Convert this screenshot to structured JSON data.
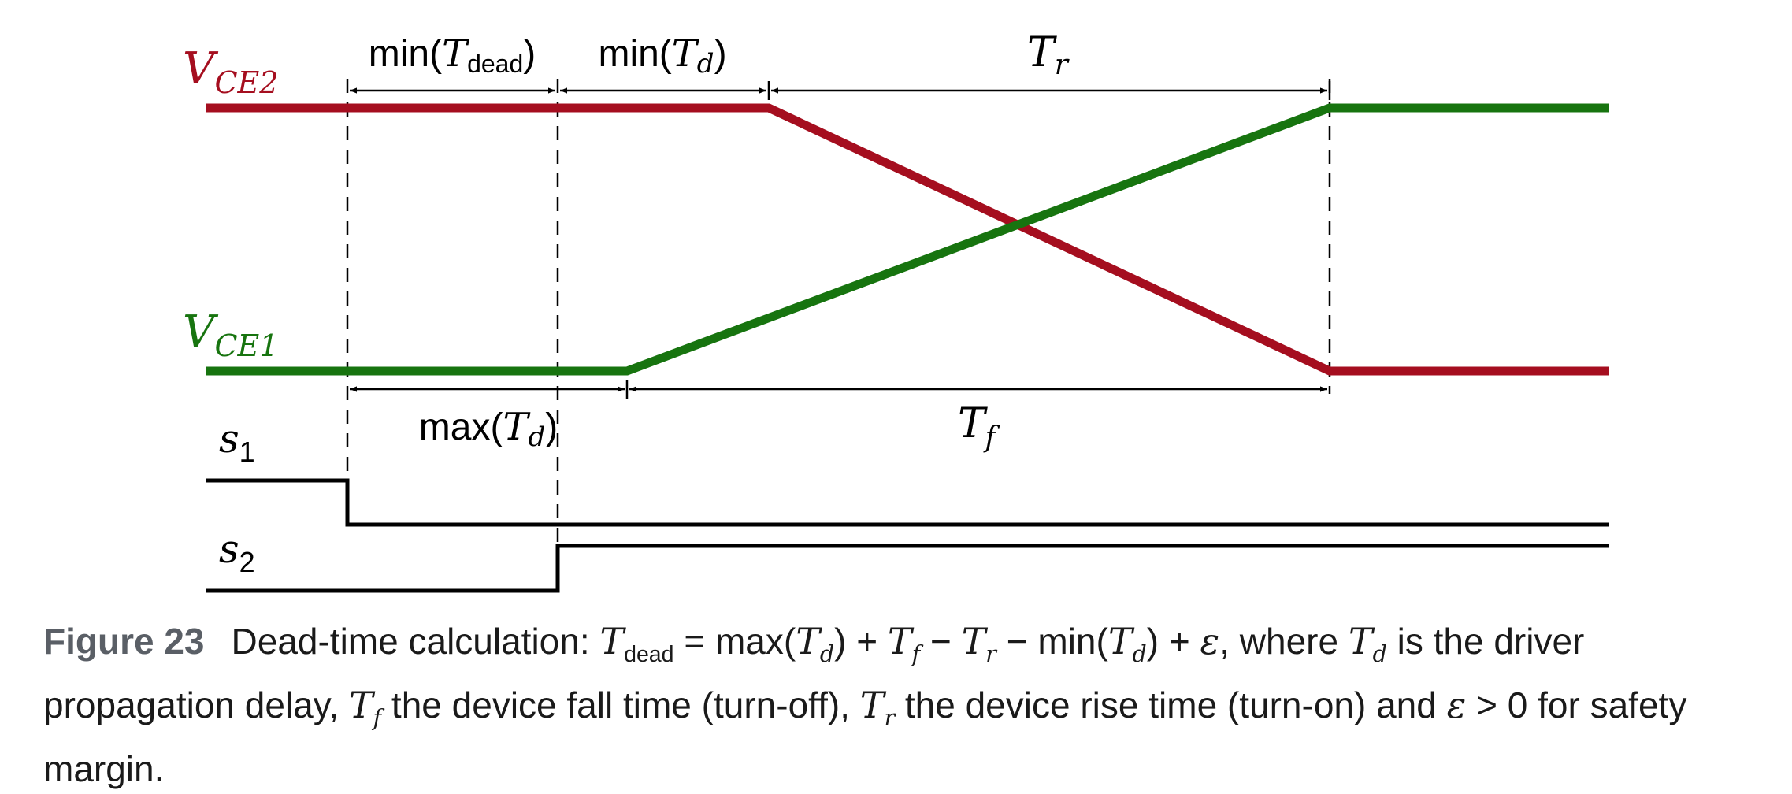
{
  "diagram": {
    "signals": {
      "vce2": {
        "symbol": "V",
        "subscript": "CE2",
        "color": "#a50e1f"
      },
      "vce1": {
        "symbol": "V",
        "subscript": "CE1",
        "color": "#17740f"
      },
      "s1": {
        "symbol": "s",
        "subscript": "1"
      },
      "s2": {
        "symbol": "s",
        "subscript": "2"
      }
    },
    "intervals": {
      "min_t_dead": {
        "func": "min",
        "symbol": "T",
        "subscript": "dead"
      },
      "min_t_d_top": {
        "func": "min",
        "symbol": "T",
        "subscript": "d"
      },
      "t_r": {
        "symbol": "T",
        "subscript": "r"
      },
      "max_t_d": {
        "func": "max",
        "symbol": "T",
        "subscript": "d"
      },
      "t_f": {
        "symbol": "T",
        "subscript": "f"
      }
    }
  },
  "caption": {
    "label": "Figure 23",
    "lead": "Dead-time calculation:",
    "t_dead": "T",
    "t_dead_sub": "dead",
    "eq": "=",
    "max": "max(",
    "td": "T",
    "td_sub": "d",
    "close": ")",
    "plus1": "+",
    "tf": "T",
    "tf_sub": "f",
    "minus1": "−",
    "tr": "T",
    "tr_sub": "r",
    "minus2": "−",
    "min": "min(",
    "td2": "T",
    "td2_sub": "d",
    "close2": ")",
    "plus2": "+",
    "eps": "ε",
    "where": ", where",
    "td3": "T",
    "td3_sub": "d",
    "is_the": "is the driver propagation delay,",
    "tf2": "T",
    "tf2_sub": "f",
    "fall": "the device fall time (turn-off),",
    "tr2": "T",
    "tr2_sub": "r",
    "rise": "the device rise time (turn-on) and",
    "eps2": "ε",
    "gt": ">",
    "zero": "0",
    "tail": "for safety margin."
  }
}
